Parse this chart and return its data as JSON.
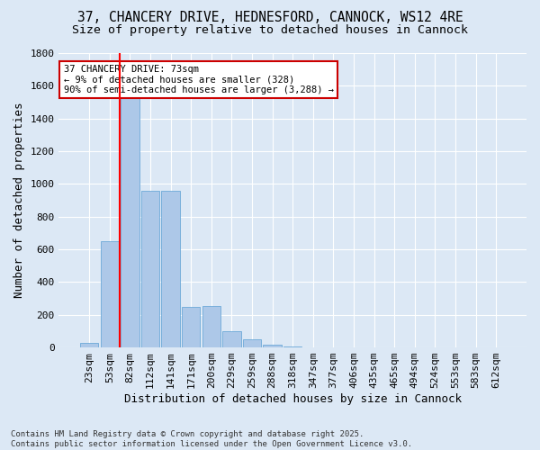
{
  "title_line1": "37, CHANCERY DRIVE, HEDNESFORD, CANNOCK, WS12 4RE",
  "title_line2": "Size of property relative to detached houses in Cannock",
  "xlabel": "Distribution of detached houses by size in Cannock",
  "ylabel": "Number of detached properties",
  "bin_labels": [
    "23sqm",
    "53sqm",
    "82sqm",
    "112sqm",
    "141sqm",
    "171sqm",
    "200sqm",
    "229sqm",
    "259sqm",
    "288sqm",
    "318sqm",
    "347sqm",
    "377sqm",
    "406sqm",
    "435sqm",
    "465sqm",
    "494sqm",
    "524sqm",
    "553sqm",
    "583sqm",
    "612sqm"
  ],
  "bar_values": [
    30,
    650,
    1530,
    960,
    960,
    250,
    255,
    100,
    50,
    15,
    5,
    2,
    1,
    0,
    0,
    0,
    0,
    0,
    0,
    0,
    0
  ],
  "bar_color": "#adc8e8",
  "bar_edge_color": "#5a9fd4",
  "background_color": "#dce8f5",
  "grid_color": "#ffffff",
  "red_line_x": 1.5,
  "annotation_text": "37 CHANCERY DRIVE: 73sqm\n← 9% of detached houses are smaller (328)\n90% of semi-detached houses are larger (3,288) →",
  "annotation_box_color": "#ffffff",
  "annotation_box_edge": "#cc0000",
  "ylim": [
    0,
    1800
  ],
  "yticks": [
    0,
    200,
    400,
    600,
    800,
    1000,
    1200,
    1400,
    1600,
    1800
  ],
  "footnote": "Contains HM Land Registry data © Crown copyright and database right 2025.\nContains public sector information licensed under the Open Government Licence v3.0.",
  "title_fontsize": 10.5,
  "subtitle_fontsize": 9.5,
  "axis_label_fontsize": 9,
  "tick_fontsize": 8,
  "annotation_fontsize": 7.5,
  "footnote_fontsize": 6.5
}
